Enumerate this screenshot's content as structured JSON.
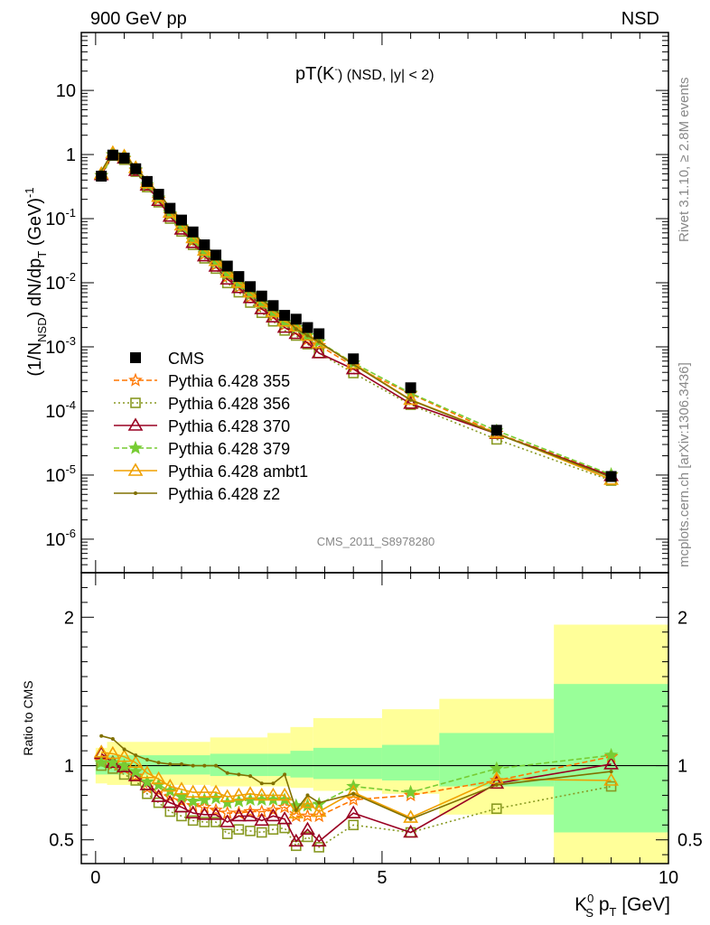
{
  "header": {
    "left": "900 GeV pp",
    "right": "NSD"
  },
  "side_text": {
    "rivet": "Rivet 3.1.10, ≥ 2.8M events",
    "mcplots": "mcplots.cern.ch [arXiv:1306.3436]"
  },
  "chart_data": [
    {
      "type": "line",
      "title_main": "pT(K",
      "title_sup": "-",
      "title_rest": ") (NSD, |y| < 2)",
      "analysis_label": "CMS_2011_S8978280",
      "yscale": "log",
      "ylim": [
        3e-07,
        80
      ],
      "xlim": [
        -0.25,
        10
      ],
      "ylabel": "(1/N_NSD) dN/dp_T (GeV)^-1",
      "y_ticks": [
        "10^-6",
        "10^-5",
        "10^-4",
        "10^-3",
        "10^-2",
        "10^-1",
        "1",
        "10"
      ],
      "legend_position": "middle-left",
      "x": [
        0.1,
        0.3,
        0.5,
        0.7,
        0.9,
        1.1,
        1.3,
        1.5,
        1.7,
        1.9,
        2.1,
        2.3,
        2.5,
        2.7,
        2.9,
        3.1,
        3.3,
        3.5,
        3.7,
        3.9,
        4.5,
        5.5,
        7.0,
        9.0
      ],
      "data": {
        "name": "CMS",
        "values": [
          0.46,
          0.98,
          0.88,
          0.6,
          0.38,
          0.24,
          0.145,
          0.095,
          0.062,
          0.039,
          0.027,
          0.0182,
          0.0125,
          0.0087,
          0.0062,
          0.0044,
          0.0031,
          0.0027,
          0.002,
          0.0016,
          0.00065,
          0.00023,
          5e-05,
          9.5e-06
        ]
      },
      "series": [
        {
          "name": "Pythia 6.428 355",
          "color": "#ff7700",
          "dash": "6,3",
          "marker": "star-open",
          "values": [
            0.47,
            0.99,
            0.86,
            0.56,
            0.32,
            0.2,
            0.115,
            0.072,
            0.045,
            0.028,
            0.019,
            0.0124,
            0.0085,
            0.006,
            0.0043,
            0.0031,
            0.0022,
            0.0018,
            0.0013,
            0.00105,
            0.0005,
            0.000185,
            4.5e-05,
            1e-05
          ]
        },
        {
          "name": "Pythia 6.428 356",
          "color": "#889922",
          "dash": "2,3",
          "marker": "square-open",
          "values": [
            0.46,
            0.96,
            0.83,
            0.54,
            0.31,
            0.18,
            0.1,
            0.063,
            0.039,
            0.024,
            0.0166,
            0.0099,
            0.0071,
            0.0049,
            0.0034,
            0.0025,
            0.0018,
            0.0015,
            0.0011,
            0.0008,
            0.00039,
            0.000125,
            3.6e-05,
            8.2e-06
          ]
        },
        {
          "name": "Pythia 6.428 370",
          "color": "#990022",
          "dash": "",
          "marker": "triangle-open",
          "values": [
            0.48,
            1.0,
            0.87,
            0.56,
            0.33,
            0.19,
            0.108,
            0.068,
            0.042,
            0.026,
            0.018,
            0.0113,
            0.0083,
            0.0058,
            0.0039,
            0.0029,
            0.002,
            0.0016,
            0.00115,
            0.0008,
            0.00045,
            0.00013,
            4.4e-05,
            9.7e-06
          ]
        },
        {
          "name": "Pythia 6.428 379",
          "color": "#77cc33",
          "dash": "6,3",
          "marker": "star-filled",
          "values": [
            0.47,
            1.0,
            0.88,
            0.58,
            0.34,
            0.21,
            0.12,
            0.075,
            0.047,
            0.03,
            0.021,
            0.0138,
            0.0095,
            0.0067,
            0.0048,
            0.0034,
            0.0024,
            0.002,
            0.0015,
            0.0012,
            0.00056,
            0.00019,
            4.9e-05,
            1.02e-05
          ]
        },
        {
          "name": "Pythia 6.428 ambt1",
          "color": "#f0a000",
          "dash": "",
          "marker": "triangle-open",
          "values": [
            0.5,
            1.06,
            0.94,
            0.62,
            0.36,
            0.22,
            0.125,
            0.079,
            0.05,
            0.032,
            0.022,
            0.0145,
            0.01,
            0.0071,
            0.005,
            0.0035,
            0.0025,
            0.0021,
            0.0015,
            0.00115,
            0.00055,
            0.00015,
            4.5e-05,
            8.5e-06
          ]
        },
        {
          "name": "Pythia 6.428 z2",
          "color": "#807000",
          "dash": "",
          "marker": "dot",
          "values": [
            0.55,
            1.12,
            0.97,
            0.64,
            0.39,
            0.25,
            0.148,
            0.096,
            0.062,
            0.039,
            0.027,
            0.0172,
            0.0117,
            0.0081,
            0.0055,
            0.0039,
            0.0029,
            0.0019,
            0.0015,
            0.0012,
            0.00053,
            0.000148,
            4.4e-05,
            9.2e-06
          ]
        }
      ]
    },
    {
      "type": "line",
      "ylabel": "Ratio to CMS",
      "xlabel_main": "K",
      "xlabel_sup": "0",
      "xlabel_sub": "S",
      "xlabel_rest": " p",
      "xlabel_sub2": "T",
      "xlabel_unit": " [GeV]",
      "xlim": [
        -0.25,
        10
      ],
      "ylim": [
        0.34,
        2.3
      ],
      "x_ticks": [
        "0",
        "5",
        "10"
      ],
      "y_ticks": [
        "0.5",
        "1",
        "2"
      ],
      "reference_line": 1,
      "uncertainty_bins": [
        {
          "x0": 0.0,
          "x1": 0.2,
          "y1": [
            0.88,
            1.12
          ],
          "y2": [
            0.94,
            1.06
          ]
        },
        {
          "x0": 0.2,
          "x1": 2.0,
          "y1": [
            0.87,
            1.16
          ],
          "y2": [
            0.94,
            1.07
          ]
        },
        {
          "x0": 2.0,
          "x1": 3.0,
          "y1": [
            0.86,
            1.19
          ],
          "y2": [
            0.93,
            1.08
          ]
        },
        {
          "x0": 3.0,
          "x1": 3.4,
          "y1": [
            0.86,
            1.22
          ],
          "y2": [
            0.93,
            1.08
          ]
        },
        {
          "x0": 3.4,
          "x1": 3.8,
          "y1": [
            0.85,
            1.26
          ],
          "y2": [
            0.92,
            1.1
          ]
        },
        {
          "x0": 3.8,
          "x1": 5.0,
          "y1": [
            0.83,
            1.32
          ],
          "y2": [
            0.91,
            1.12
          ]
        },
        {
          "x0": 5.0,
          "x1": 6.0,
          "y1": [
            0.81,
            1.38
          ],
          "y2": [
            0.9,
            1.14
          ]
        },
        {
          "x0": 6.0,
          "x1": 8.0,
          "y1": [
            0.67,
            1.45
          ],
          "y2": [
            0.86,
            1.22
          ]
        },
        {
          "x0": 8.0,
          "x1": 10.0,
          "y1": [
            0.32,
            1.95
          ],
          "y2": [
            0.55,
            1.55
          ]
        }
      ],
      "x": [
        0.1,
        0.3,
        0.5,
        0.7,
        0.9,
        1.1,
        1.3,
        1.5,
        1.7,
        1.9,
        2.1,
        2.3,
        2.5,
        2.7,
        2.9,
        3.1,
        3.3,
        3.5,
        3.7,
        3.9,
        4.5,
        5.5,
        7.0,
        9.0
      ],
      "series": [
        {
          "name": "Pythia 6.428 355",
          "values": [
            1.03,
            1.01,
            0.98,
            0.93,
            0.85,
            0.83,
            0.79,
            0.76,
            0.73,
            0.72,
            0.7,
            0.68,
            0.68,
            0.69,
            0.69,
            0.7,
            0.72,
            0.66,
            0.66,
            0.66,
            0.77,
            0.8,
            0.9,
            1.06
          ]
        },
        {
          "name": "Pythia 6.428 356",
          "values": [
            1.0,
            0.98,
            0.94,
            0.9,
            0.81,
            0.75,
            0.69,
            0.66,
            0.63,
            0.62,
            0.62,
            0.54,
            0.57,
            0.56,
            0.55,
            0.57,
            0.58,
            0.46,
            0.52,
            0.45,
            0.6,
            0.55,
            0.71,
            0.86
          ]
        },
        {
          "name": "Pythia 6.428 370",
          "values": [
            1.08,
            1.02,
            0.99,
            0.93,
            0.87,
            0.79,
            0.75,
            0.72,
            0.68,
            0.67,
            0.67,
            0.62,
            0.66,
            0.66,
            0.63,
            0.66,
            0.64,
            0.49,
            0.57,
            0.49,
            0.68,
            0.55,
            0.88,
            1.01
          ]
        },
        {
          "name": "Pythia 6.428 379",
          "values": [
            1.02,
            1.02,
            1.0,
            0.96,
            0.89,
            0.87,
            0.83,
            0.79,
            0.76,
            0.77,
            0.78,
            0.75,
            0.76,
            0.77,
            0.77,
            0.77,
            0.77,
            0.73,
            0.73,
            0.74,
            0.86,
            0.82,
            0.98,
            1.07
          ]
        },
        {
          "name": "Pythia 6.428 ambt1",
          "values": [
            1.09,
            1.08,
            1.06,
            1.02,
            0.95,
            0.91,
            0.86,
            0.84,
            0.82,
            0.82,
            0.82,
            0.79,
            0.8,
            0.81,
            0.8,
            0.8,
            0.8,
            0.68,
            0.75,
            0.69,
            0.82,
            0.65,
            0.91,
            0.9
          ]
        },
        {
          "name": "Pythia 6.428 z2",
          "values": [
            1.2,
            1.18,
            1.11,
            1.07,
            1.04,
            1.02,
            1.01,
            1.01,
            1.0,
            1.0,
            1.0,
            0.95,
            0.94,
            0.93,
            0.88,
            0.88,
            0.94,
            0.7,
            0.8,
            0.75,
            0.81,
            0.64,
            0.87,
            0.96
          ]
        }
      ]
    }
  ]
}
